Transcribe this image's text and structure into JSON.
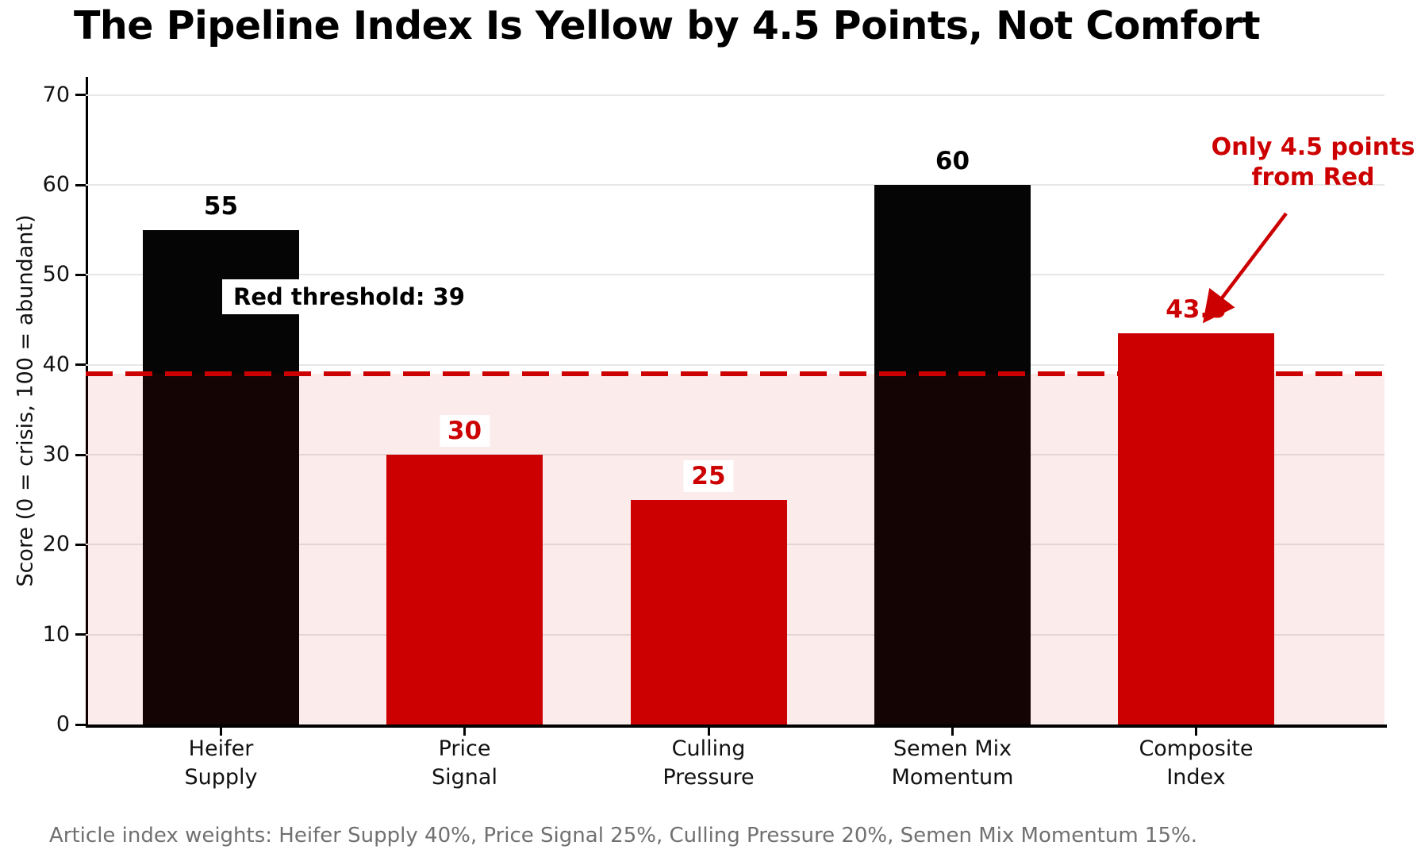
{
  "title": "The Pipeline Index Is Yellow by 4.5 Points, Not Comfort",
  "footer": "Article index weights: Heifer Supply 40%, Price Signal 25%, Culling Pressure 20%, Semen Mix Momentum 15%.",
  "chart_data": {
    "type": "bar",
    "title": "The Pipeline Index Is Yellow by 4.5 Points, Not Comfort",
    "ylabel": "Score (0 = crisis, 100 = abundant)",
    "categories": [
      "Heifer\nSupply",
      "Price\nSignal",
      "Culling\nPressure",
      "Semen Mix\nMomentum",
      "Composite\nIndex"
    ],
    "values": [
      55,
      30,
      25,
      60,
      43.5
    ],
    "value_labels": [
      "55",
      "30",
      "25",
      "60",
      "43.5"
    ],
    "bar_colors": [
      "#050505",
      "#cc0000",
      "#cc0000",
      "#050505",
      "#cc0000"
    ],
    "value_label_colors": [
      "#000000",
      "#cc0000",
      "#cc0000",
      "#000000",
      "#cc0000"
    ],
    "yticks": [
      0,
      10,
      20,
      30,
      40,
      50,
      60,
      70
    ],
    "ylim": [
      0,
      72
    ],
    "grid": true,
    "legend": false,
    "threshold": {
      "value": 39,
      "label": "Red threshold: 39",
      "line_color": "#cc0000",
      "line_style": "dashed",
      "shade_below_color": "rgba(204,0,0,0.08)"
    },
    "annotation": {
      "line1": "Only 4.5 points",
      "line2": "from Red",
      "color": "#cc0000",
      "points_to": "Composite Index bar top (43.5)"
    }
  },
  "colors": {
    "red": "#cc0000",
    "black_bar": "#050505",
    "gridline": "#e7e7e7",
    "footer_gray": "#707070",
    "shade_pink": "rgba(204,0,0,0.08)"
  }
}
